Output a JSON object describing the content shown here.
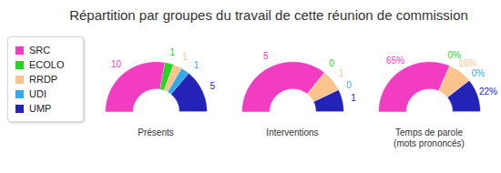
{
  "title": "Répartition par groupes du travail de cette réunion de commission",
  "chart_data": [
    {
      "type": "pie",
      "title": "Présents",
      "categories": [
        "SRC",
        "ECOLO",
        "RRDP",
        "UDI",
        "UMP"
      ],
      "values": [
        10,
        1,
        1,
        1,
        5
      ],
      "colors": [
        "#f23cc2",
        "#22d622",
        "#fcc38c",
        "#33aaee",
        "#2323b8"
      ],
      "data_labels": true,
      "legend": "left"
    },
    {
      "type": "pie",
      "title": "Interventions",
      "categories": [
        "SRC",
        "ECOLO",
        "RRDP",
        "UDI",
        "UMP"
      ],
      "values": [
        5,
        0,
        1,
        0,
        1
      ],
      "colors": [
        "#f23cc2",
        "#22d622",
        "#fcc38c",
        "#33aaee",
        "#2323b8"
      ],
      "data_labels": true
    },
    {
      "type": "pie",
      "title": "Temps de parole\n(mots prononcés)",
      "categories": [
        "SRC",
        "ECOLO",
        "RRDP",
        "UDI",
        "UMP"
      ],
      "values": [
        65,
        0,
        16,
        0,
        22
      ],
      "value_labels": [
        "65%",
        "0%",
        "16%",
        "0%",
        "22%"
      ],
      "colors": [
        "#f23cc2",
        "#22d622",
        "#fcc38c",
        "#33aaee",
        "#2323b8"
      ],
      "data_labels": true
    }
  ]
}
